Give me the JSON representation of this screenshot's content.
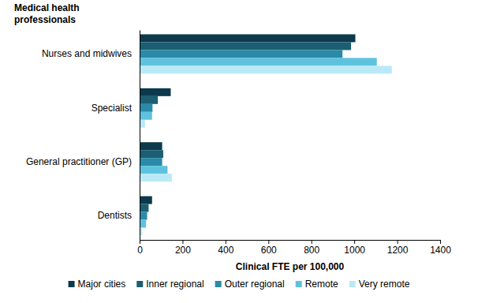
{
  "chart_data": {
    "type": "bar",
    "orientation": "horizontal",
    "y_label": "Medical health professionals",
    "x_label": "Clinical FTE per 100,000",
    "categories": [
      "Nurses and midwives",
      "Specialist",
      "General practitioner (GP)",
      "Dentists"
    ],
    "series": [
      {
        "name": "Major cities",
        "color": "#0c3a4c",
        "values": [
          1005,
          145,
          105,
          58
        ]
      },
      {
        "name": "Inner regional",
        "color": "#1c5e72",
        "values": [
          985,
          85,
          110,
          42
        ]
      },
      {
        "name": "Outer regional",
        "color": "#2a8aa8",
        "values": [
          945,
          60,
          105,
          35
        ]
      },
      {
        "name": "Remote",
        "color": "#5ec2de",
        "values": [
          1105,
          58,
          130,
          30
        ]
      },
      {
        "name": "Very remote",
        "color": "#b9e9f6",
        "values": [
          1175,
          25,
          150,
          12
        ]
      }
    ],
    "xlim": [
      0,
      1400
    ],
    "xticks": [
      0,
      200,
      400,
      600,
      800,
      1000,
      1200,
      1400
    ],
    "grid": false,
    "legend": "bottom"
  }
}
